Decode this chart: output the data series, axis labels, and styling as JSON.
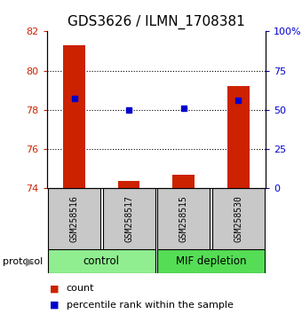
{
  "title": "GDS3626 / ILMN_1708381",
  "samples": [
    "GSM258516",
    "GSM258517",
    "GSM258515",
    "GSM258530"
  ],
  "groups": [
    {
      "name": "control",
      "samples": [
        "GSM258516",
        "GSM258517"
      ],
      "color": "#90EE90"
    },
    {
      "name": "MIF depletion",
      "samples": [
        "GSM258515",
        "GSM258530"
      ],
      "color": "#55DD55"
    }
  ],
  "count_values": [
    81.3,
    74.4,
    74.7,
    79.2
  ],
  "percentile_values": [
    78.6,
    78.0,
    78.1,
    78.5
  ],
  "ylim_left": [
    74,
    82
  ],
  "yticks_left": [
    74,
    76,
    78,
    80,
    82
  ],
  "ylim_right": [
    0,
    100
  ],
  "yticks_right": [
    0,
    25,
    50,
    75,
    100
  ],
  "ytick_labels_right": [
    "0",
    "25",
    "50",
    "75",
    "100%"
  ],
  "bar_color": "#CC2200",
  "dot_color": "#0000CC",
  "bg_color": "#C8C8C8",
  "title_fontsize": 11,
  "tick_fontsize": 8,
  "legend_fontsize": 8
}
